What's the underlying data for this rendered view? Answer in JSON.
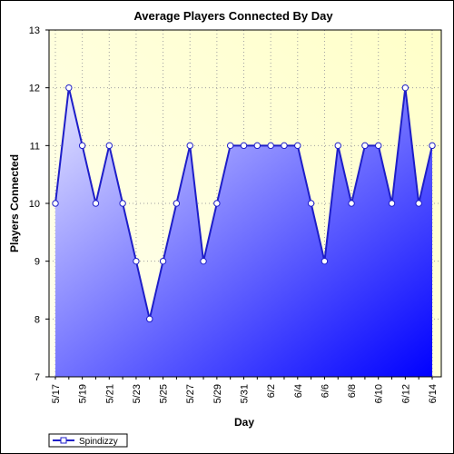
{
  "chart_data": {
    "type": "area",
    "title": "Average Players Connected By Day",
    "xlabel": "Day",
    "ylabel": "Players Connected",
    "ylim": [
      7,
      13
    ],
    "yticks": [
      7,
      8,
      9,
      10,
      11,
      12,
      13
    ],
    "x": [
      "5/17",
      "5/18",
      "5/19",
      "5/20",
      "5/21",
      "5/22",
      "5/23",
      "5/24",
      "5/25",
      "5/26",
      "5/27",
      "5/28",
      "5/29",
      "5/30",
      "5/31",
      "6/1",
      "6/2",
      "6/3",
      "6/4",
      "6/5",
      "6/6",
      "6/7",
      "6/8",
      "6/9",
      "6/10",
      "6/11",
      "6/12",
      "6/13",
      "6/14"
    ],
    "xtick_labels": [
      "5/17",
      "5/19",
      "5/21",
      "5/23",
      "5/25",
      "5/27",
      "5/29",
      "5/31",
      "6/2",
      "6/4",
      "6/6",
      "6/8",
      "6/10",
      "6/12",
      "6/14"
    ],
    "series": [
      {
        "name": "Spindizzy",
        "values": [
          10,
          12,
          11,
          10,
          11,
          10,
          9,
          8,
          9,
          10,
          11,
          9,
          10,
          11,
          11,
          11,
          11,
          11,
          11,
          10,
          9,
          11,
          10,
          11,
          11,
          10,
          12,
          10,
          11
        ]
      }
    ],
    "grid": true,
    "legend_position": "bottom-left",
    "colors": {
      "line": "#1e1ec8",
      "fill_light": "#e6e6ff",
      "fill_dark": "#0000ff",
      "plot_bg_light": "#fffff0",
      "plot_bg_dark": "#ffffc8",
      "marker_fill": "#ffffff"
    }
  }
}
